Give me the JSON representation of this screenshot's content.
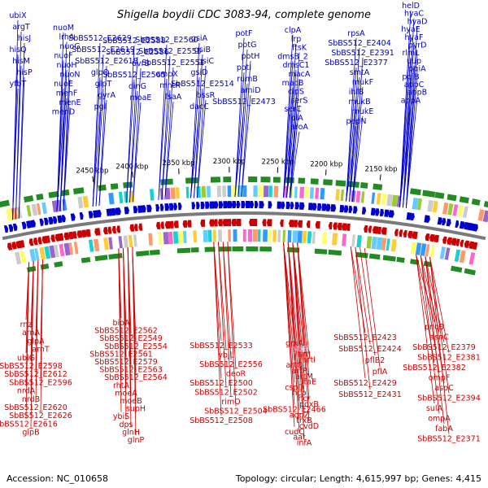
{
  "title": "Shigella boydii CDC 3083-94, complete genome",
  "accession": "Accession: NC_010658",
  "topology": "Topology: circular; Length: 4,615,997 bp; Genes: 4,415",
  "colors": {
    "forward": "#0000cc",
    "reverse": "#cc0000",
    "rna": "#e8a0e8",
    "backbone": "#7a7a7a",
    "trna": "#228b22"
  },
  "kbp_ticks": [
    "2450 kbp",
    "2400 kbp",
    "2350 kbp",
    "2300 kbp",
    "2250 kbp",
    "2200 kbp",
    "2150 kbp"
  ],
  "top_labels": [
    "ubiX",
    "argT",
    "hisJ",
    "hisQ",
    "hisM",
    "hisP",
    "yfbT",
    "nuoM",
    "lrhA",
    "nuoG",
    "nuoF",
    "nuoH",
    "nuoN",
    "nuoE",
    "menF",
    "menE",
    "menD",
    "SbBS512_E2629",
    "SbBS512_E2619",
    "SbBS512_E2618",
    "glpQ",
    "glpT",
    "gyrA",
    "pgl",
    "SbBS512_E2588",
    "SbBS512_E2586",
    "uvrB",
    "SbBS512_E2565",
    "dinG",
    "moaE",
    "SbBS512_E2560",
    "SbBS512_E2555",
    "SbBS512_E2551",
    "ompX",
    "mntR",
    "fsaA",
    "gsiA",
    "gsiB",
    "gsiC",
    "gsiD",
    "SbBS512_E2514",
    "bssR",
    "dacC",
    "potF",
    "potG",
    "potH",
    "potI",
    "rumB",
    "amiD",
    "SbBS512_E2473",
    "clpA",
    "lrp",
    "ftsK",
    "dmsB_2",
    "dmsC1",
    "macA",
    "macB",
    "clpS",
    "serS",
    "serC",
    "lolA",
    "aroA",
    "rpsA",
    "SbBS512_E2404",
    "SbBS512_E2391",
    "SbBS512_E2377",
    "smtA",
    "mukF",
    "ihfB",
    "mukB",
    "mukE",
    "pepN",
    "helD",
    "hyaC",
    "hyaD",
    "hyaE",
    "hyaF",
    "pyrD",
    "rlmL",
    "uup",
    "pqiA",
    "pqiB",
    "appC",
    "appB",
    "appA"
  ],
  "bottom_labels": [
    "rnz",
    "arnA",
    "glpA",
    "arnT",
    "ubiG",
    "SbBS512_E2598",
    "SbBS512_E2612",
    "SbBS512_E2596",
    "nrdA",
    "nrdB",
    "SbBS512_E2620",
    "SbBS512_E2626",
    "SbBS512_E2616",
    "glpB",
    "bioA",
    "SbBS512_E2562",
    "SbBS512_E2549",
    "SbBS512_E2554",
    "SbBS512_E2561",
    "SbBS512_E2579",
    "SbBS512_E2563",
    "SbBS512_E2564",
    "rhtA",
    "moeA",
    "moeB",
    "supH",
    "ybiS",
    "dps",
    "glnH",
    "glnP",
    "SbBS512_E2533",
    "ybjL",
    "SbBS512_E2556",
    "deoR",
    "SbBS512_E2500",
    "SbBS512_E2502",
    "rimO",
    "SbBS512_E2504",
    "SbBS512_E2508",
    "grxA",
    "rybB",
    "artJ",
    "artI",
    "artQ",
    "artP",
    "artM",
    "ltaE",
    "cspD",
    "hcp",
    "hcr",
    "poxB",
    "SbBS512_E2466",
    "aqpZ",
    "trxB",
    "cvdD",
    "cudC",
    "aat",
    "infA",
    "SbBS512_E2423",
    "SbBS512_E2424",
    "pflB2",
    "pflA",
    "SbBS512_E2429",
    "SbBS512_E2431",
    "pncB",
    "asnC",
    "SbBS512_E2379",
    "SbBS512_E2381",
    "SbBS512_E2382",
    "ompF",
    "aspC",
    "SbBS512_E2394",
    "sulA",
    "ompA",
    "fabA",
    "SbBS512_E2371"
  ],
  "rna_labels": [
    "rybB"
  ]
}
